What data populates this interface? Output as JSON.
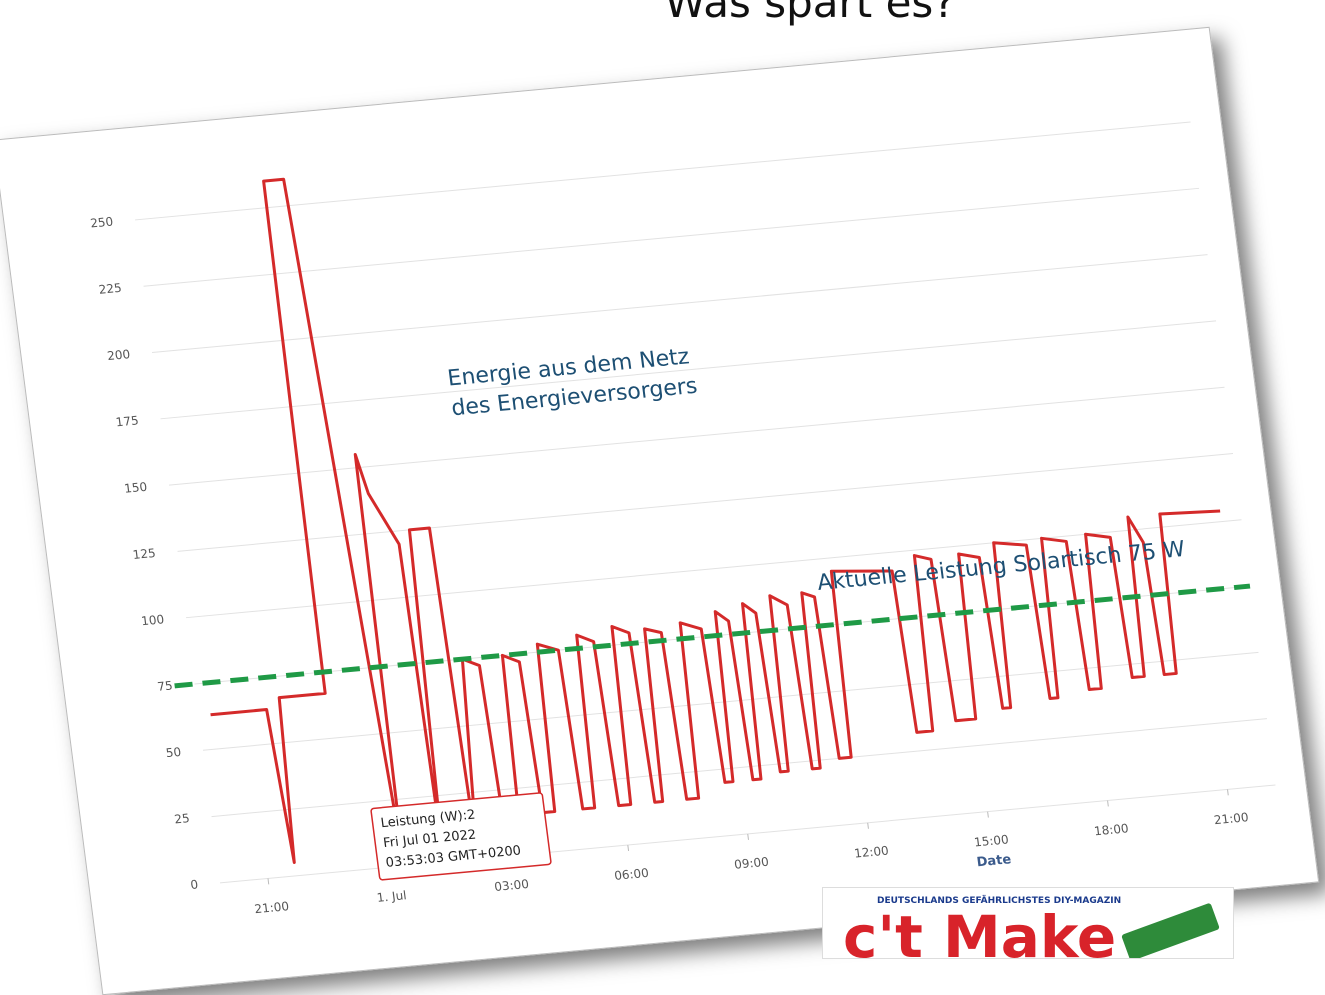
{
  "title": "Was spart es?",
  "chart_data": {
    "type": "line",
    "x": [
      20.1,
      21.5,
      21.7,
      21.85,
      23.0,
      23.1,
      23.6,
      24.4,
      24.5,
      24.7,
      25.3,
      25.4,
      25.6,
      26.1,
      26.25,
      26.5,
      26.9,
      27.0,
      27.4,
      27.5,
      27.9,
      28.0,
      28.3,
      28.4,
      28.9,
      29.0,
      29.3,
      29.4,
      29.8,
      29.9,
      30.2,
      30.3,
      30.7,
      30.8,
      31.0,
      31.1,
      31.5,
      31.6,
      31.9,
      32.0,
      32.5,
      32.6,
      32.8,
      32.9,
      33.2,
      33.3,
      33.5,
      33.6,
      33.9,
      34.0,
      34.2,
      34.3,
      34.7,
      34.8,
      35.0,
      35.1,
      35.4,
      35.5,
      35.8,
      35.9,
      37.4,
      37.5,
      37.9,
      38.0,
      38.4,
      38.5,
      39.0,
      39.1,
      39.6,
      39.7,
      39.9,
      40.0,
      40.8,
      40.9,
      41.1,
      41.2,
      41.8,
      41.9,
      42.2,
      42.3,
      42.9,
      43.0,
      43.3,
      43.4,
      43.7,
      43.8,
      44.1,
      44.2,
      45.7
    ],
    "values": [
      63,
      63,
      5,
      67,
      67,
      260,
      260,
      2,
      155,
      140,
      120,
      2,
      125,
      125,
      2,
      75,
      72,
      15,
      15,
      75,
      72,
      15,
      15,
      78,
      75,
      15,
      15,
      80,
      77,
      15,
      15,
      82,
      79,
      15,
      15,
      80,
      78,
      15,
      15,
      81,
      78,
      20,
      20,
      84,
      80,
      20,
      20,
      86,
      82,
      22,
      22,
      88,
      84,
      22,
      22,
      88,
      86,
      25,
      25,
      95,
      93,
      32,
      32,
      98,
      96,
      35,
      35,
      97,
      95,
      38,
      38,
      100,
      98,
      40,
      40,
      100,
      98,
      42,
      42,
      100,
      98,
      45,
      45,
      105,
      95,
      45,
      45,
      105,
      104
    ],
    "color": "#d42a2a",
    "xlim": [
      19.8,
      46.2
    ],
    "xticks": [
      {
        "value": 21,
        "label": "21:00"
      },
      {
        "value": 24,
        "label": "1. Jul"
      },
      {
        "value": 27,
        "label": "03:00"
      },
      {
        "value": 30,
        "label": "06:00"
      },
      {
        "value": 33,
        "label": "09:00"
      },
      {
        "value": 36,
        "label": "12:00"
      },
      {
        "value": 39,
        "label": "15:00"
      },
      {
        "value": 42,
        "label": "18:00"
      },
      {
        "value": 45,
        "label": "21:00"
      }
    ],
    "xlabel": "Date",
    "ylim": [
      0,
      262
    ],
    "yticks": [
      0,
      25,
      50,
      75,
      100,
      125,
      150,
      175,
      200,
      225,
      250
    ],
    "grid": true,
    "reference_line": {
      "value": 75,
      "color": "#1f9a46",
      "label": "Aktuelle Leistung Solartisch 75 W"
    },
    "annotation": [
      "Energie aus dem Netz",
      "des Energieversorgers"
    ],
    "tooltip": [
      "Leistung (W):2",
      "Fri Jul 01 2022",
      "03:53:03 GMT+0200"
    ]
  },
  "magazine": {
    "tagline": "DEUTSCHLANDS GEFÄHRLICHSTES DIY-MAGAZIN",
    "logo": "c't Make"
  }
}
